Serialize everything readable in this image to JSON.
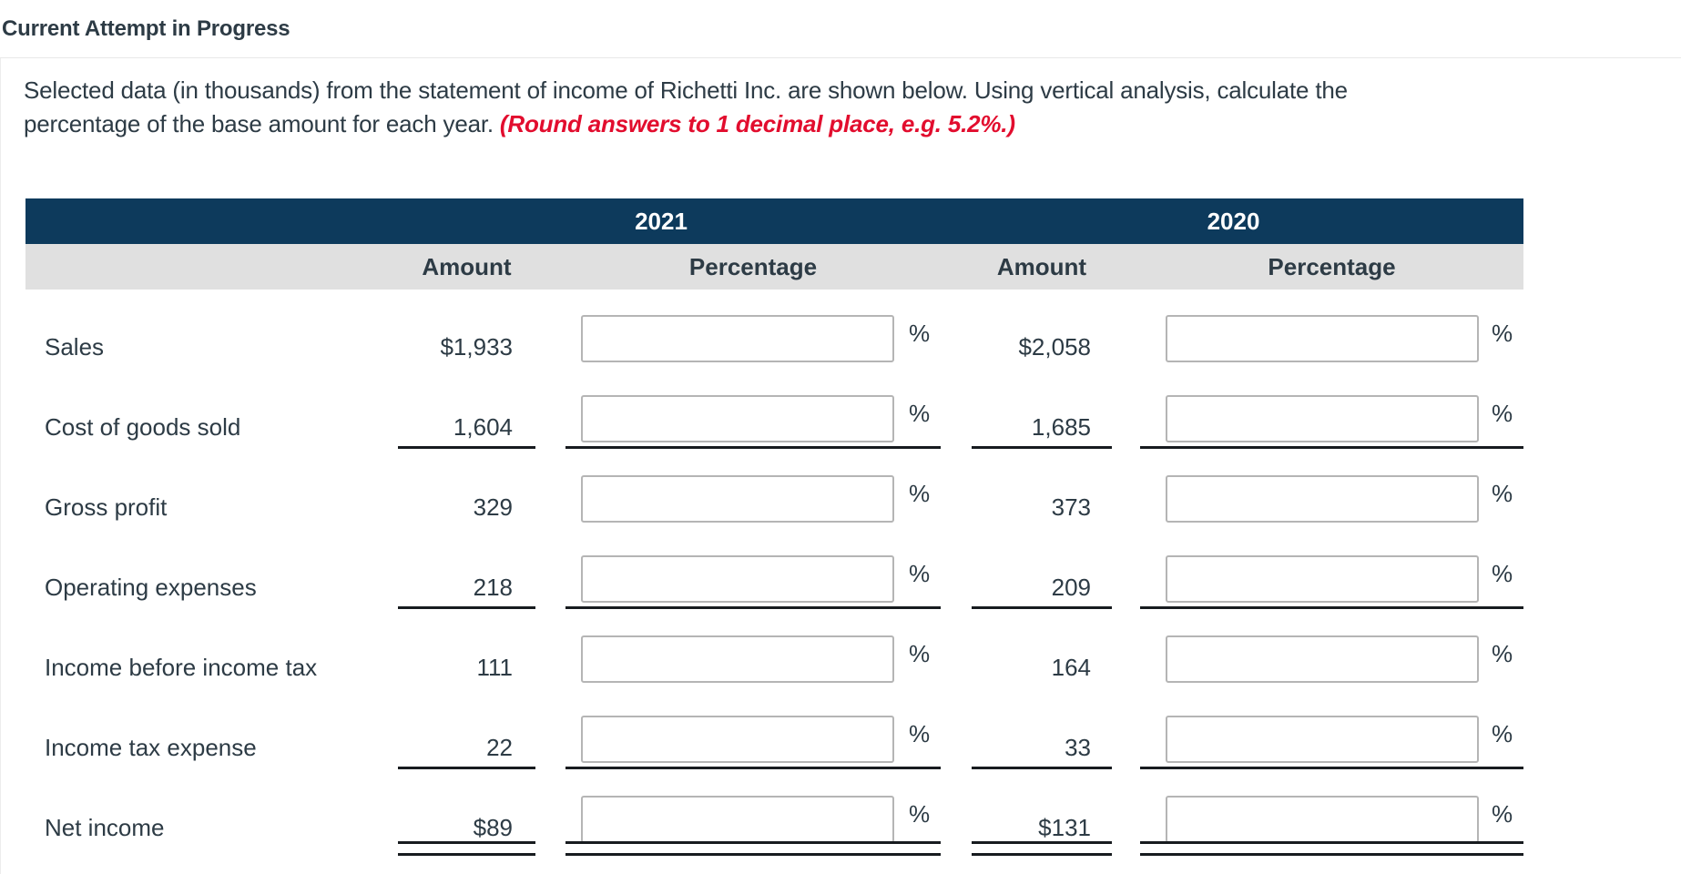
{
  "page": {
    "title": "Current Attempt in Progress",
    "instructions_line1": "Selected data (in thousands) from the statement of income of Richetti Inc. are shown below. Using vertical analysis, calculate the",
    "instructions_line2_normal": "percentage of the base amount for each year. ",
    "instructions_line2_emphasis": "(Round answers to 1 decimal place, e.g. 5.2%.)"
  },
  "table": {
    "year_headers": [
      "2021",
      "2020"
    ],
    "column_headers": {
      "amount": "Amount",
      "percentage": "Percentage"
    },
    "percent_symbol": "%",
    "rows": [
      {
        "label": "Sales",
        "amount_2021": "$1,933",
        "pct_2021": "",
        "amount_2020": "$2,058",
        "pct_2020": "",
        "underline": "none"
      },
      {
        "label": "Cost of goods sold",
        "amount_2021": "1,604",
        "pct_2021": "",
        "amount_2020": "1,685",
        "pct_2020": "",
        "underline": "single"
      },
      {
        "label": "Gross profit",
        "amount_2021": "329",
        "pct_2021": "",
        "amount_2020": "373",
        "pct_2020": "",
        "underline": "none"
      },
      {
        "label": "Operating expenses",
        "amount_2021": "218",
        "pct_2021": "",
        "amount_2020": "209",
        "pct_2020": "",
        "underline": "single"
      },
      {
        "label": "Income before income tax",
        "amount_2021": "111",
        "pct_2021": "",
        "amount_2020": "164",
        "pct_2020": "",
        "underline": "none"
      },
      {
        "label": "Income tax expense",
        "amount_2021": "22",
        "pct_2021": "",
        "amount_2020": "33",
        "pct_2020": "",
        "underline": "single"
      },
      {
        "label": "Net income",
        "amount_2021": "$89",
        "pct_2021": "",
        "amount_2020": "$131",
        "pct_2020": "",
        "underline": "double"
      }
    ]
  },
  "colors": {
    "header_navy": "#0d3a5c",
    "subheader_gray": "#e0e0e0",
    "text_dark": "#2d3b45",
    "accent_red": "#e20d2e",
    "rule_black": "#171b1f",
    "input_border": "#b5b5b5"
  }
}
